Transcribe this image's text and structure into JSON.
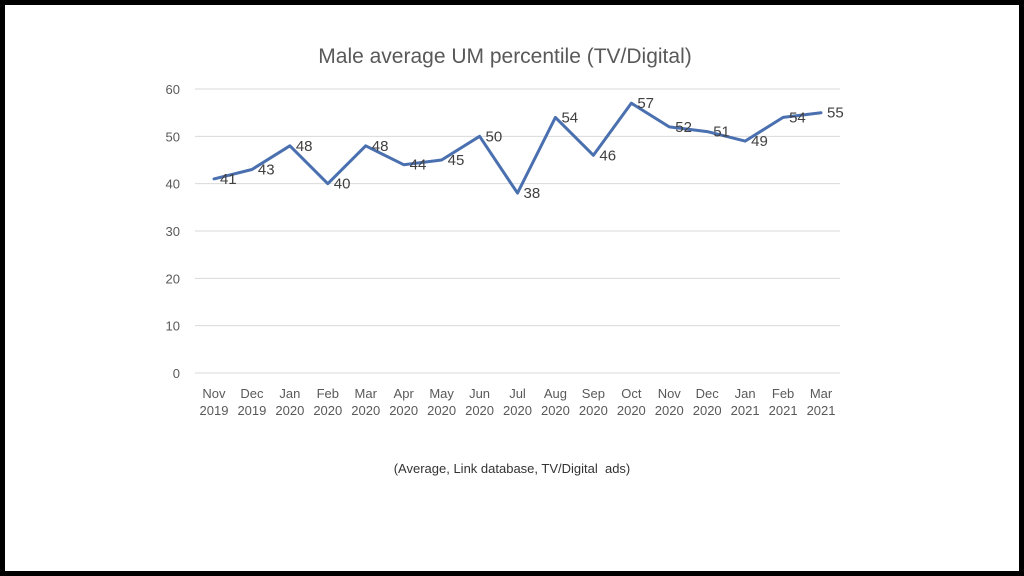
{
  "chart_data": {
    "type": "line",
    "title": "Male average UM percentile (TV/Digital)",
    "xlabel": "",
    "ylabel": "",
    "categories": [
      [
        "Nov",
        "2019"
      ],
      [
        "Dec",
        "2019"
      ],
      [
        "Jan",
        "2020"
      ],
      [
        "Feb",
        "2020"
      ],
      [
        "Mar",
        "2020"
      ],
      [
        "Apr",
        "2020"
      ],
      [
        "May",
        "2020"
      ],
      [
        "Jun",
        "2020"
      ],
      [
        "Jul",
        "2020"
      ],
      [
        "Aug",
        "2020"
      ],
      [
        "Sep",
        "2020"
      ],
      [
        "Oct",
        "2020"
      ],
      [
        "Nov",
        "2020"
      ],
      [
        "Dec",
        "2020"
      ],
      [
        "Jan",
        "2021"
      ],
      [
        "Feb",
        "2021"
      ],
      [
        "Mar",
        "2021"
      ]
    ],
    "series": [
      {
        "values": [
          41,
          43,
          48,
          40,
          48,
          44,
          45,
          50,
          38,
          54,
          46,
          57,
          52,
          51,
          49,
          54,
          55
        ],
        "color": "#4a70b0"
      }
    ],
    "ylim": [
      0,
      60
    ],
    "yticks": [
      0,
      10,
      20,
      30,
      40,
      50,
      60
    ],
    "grid": true,
    "legend": "none",
    "data_labels": true
  },
  "caption": "(Average, Link database, TV/Digital  ads)"
}
